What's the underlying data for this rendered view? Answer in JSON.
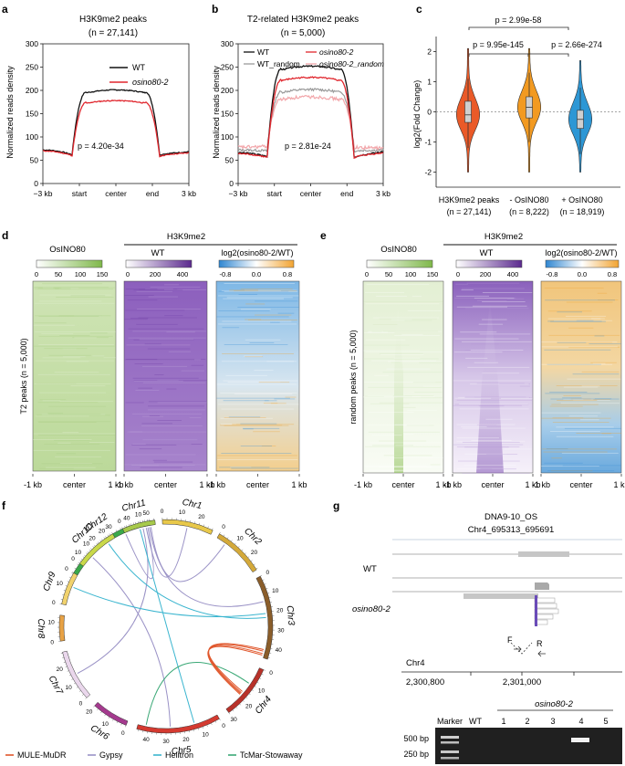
{
  "panels": {
    "a": {
      "letter": "a",
      "title": "H3K9me2 peaks",
      "n_label": "(n = 27,141)",
      "ylabel": "Normalized reads density",
      "yticks": [
        "0",
        "50",
        "100",
        "150",
        "200",
        "250",
        "300"
      ],
      "xticks": [
        "−3 kb",
        "start",
        "center",
        "end",
        "3 kb"
      ],
      "legend": [
        "WT",
        "osino80-2"
      ],
      "pvalue": "p = 4.20e-34"
    },
    "b": {
      "letter": "b",
      "title": "T2-related H3K9me2 peaks",
      "n_label": "(n = 5,000)",
      "ylabel": "Normalized reads density",
      "yticks": [
        "0",
        "50",
        "100",
        "150",
        "200",
        "250",
        "300"
      ],
      "xticks": [
        "−3 kb",
        "start",
        "center",
        "end",
        "3 kb"
      ],
      "legend": [
        "WT",
        "osino80-2",
        "WT_random",
        "osino80-2_random"
      ],
      "pvalue": "p = 2.81e-24"
    },
    "c": {
      "letter": "c",
      "ylabel": "log2(Fold Change)",
      "yticks": [
        "2",
        "1",
        "0",
        "-1",
        "-2"
      ],
      "groups": [
        "H3K9me2 peaks",
        "- OsINO80",
        "+ OsINO80"
      ],
      "group_n": [
        "(n = 27,141)",
        "(n = 8,222)",
        "(n = 18,919)"
      ],
      "pvalues": [
        "p = 2.99e-58",
        "p = 9.95e-145",
        "p = 2.66e-274"
      ]
    },
    "d": {
      "letter": "d",
      "h3k9_header": "H3K9me2",
      "col_titles": [
        "OsINO80",
        "WT",
        "log2(osino80-2/WT)"
      ],
      "scale_osino80": [
        "0",
        "50",
        "100",
        "150"
      ],
      "scale_wt": [
        "0",
        "200",
        "400"
      ],
      "scale_log": [
        "-0.8",
        "0.0",
        "0.8"
      ],
      "row_label": "T2 peaks (n = 5,000)",
      "xticks": [
        "-1 kb",
        "center",
        "1 kb"
      ]
    },
    "e": {
      "letter": "e",
      "h3k9_header": "H3K9me2",
      "col_titles": [
        "OsINO80",
        "WT",
        "log2(osino80-2/WT)"
      ],
      "scale_osino80": [
        "0",
        "50",
        "100",
        "150"
      ],
      "scale_wt": [
        "0",
        "200",
        "400"
      ],
      "scale_log": [
        "-0.8",
        "0.0",
        "0.8"
      ],
      "row_label": "random peaks (n = 5,000)",
      "xticks": [
        "-1 kb",
        "center",
        "1 kb"
      ]
    },
    "f": {
      "letter": "f",
      "chromosomes": [
        "Chr1",
        "Chr2",
        "Chr3",
        "Chr4",
        "Chr5",
        "Chr6",
        "Chr7",
        "Chr8",
        "Chr9",
        "Chr10",
        "Chr11",
        "Chr12"
      ],
      "legend": [
        "MULE-MuDR",
        "Gypsy",
        "Helitron",
        "TcMar-Stowaway"
      ]
    },
    "g": {
      "letter": "g",
      "locus_name": "DNA9-10_OS",
      "locus_coord": "Chr4_695313_695691",
      "tracks": [
        "WT",
        "osino80-2"
      ],
      "primers": [
        "F",
        "R"
      ],
      "chrom": "Chr4",
      "coords": [
        "2,300,800",
        "2,301,000"
      ],
      "gel_group": "osino80-2",
      "gel_lanes": [
        "Marker",
        "WT",
        "1",
        "2",
        "3",
        "4",
        "5"
      ],
      "gel_sizes": [
        "500 bp",
        "250 bp"
      ]
    }
  },
  "colors": {
    "wt": "#111111",
    "mutant": "#e0262d",
    "wt_random": "#9a9a9a",
    "mutant_random": "#f2a6aa",
    "violin": [
      "#ea5a28",
      "#f29a21",
      "#2d97d5"
    ],
    "osino80_heat": "#8bbf55",
    "wt_heat": "#6e3aa0",
    "log_neg": "#3a8fd6",
    "log_pos": "#f2a431",
    "mule": "#e0572c",
    "gypsy": "#9a92c6",
    "helitron": "#3ab5cf",
    "tcmar": "#3aa876"
  },
  "chart_data": [
    {
      "type": "line",
      "panel": "a",
      "title": "H3K9me2 peaks",
      "ylabel": "Normalized reads density",
      "ylim": [
        0,
        300
      ],
      "x": [
        "−3 kb",
        "start",
        "center",
        "end",
        "3 kb"
      ],
      "series": [
        {
          "name": "WT",
          "values": [
            72,
            62,
            201,
            61,
            68
          ]
        },
        {
          "name": "osino80-2",
          "values": [
            70,
            60,
            178,
            58,
            66
          ]
        }
      ]
    },
    {
      "type": "line",
      "panel": "b",
      "title": "T2-related H3K9me2 peaks",
      "ylabel": "Normalized reads density",
      "ylim": [
        0,
        300
      ],
      "x": [
        "−3 kb",
        "start",
        "center",
        "end",
        "3 kb"
      ],
      "series": [
        {
          "name": "WT",
          "values": [
            66,
            58,
            252,
            56,
            68
          ]
        },
        {
          "name": "osino80-2",
          "values": [
            64,
            56,
            228,
            55,
            66
          ]
        },
        {
          "name": "WT_random",
          "values": [
            72,
            70,
            202,
            70,
            72
          ]
        },
        {
          "name": "osino80-2_random",
          "values": [
            78,
            80,
            186,
            78,
            76
          ]
        }
      ]
    },
    {
      "type": "violin",
      "panel": "c",
      "ylabel": "log2(Fold Change)",
      "ylim": [
        -2.5,
        2.5
      ],
      "categories": [
        "H3K9me2 peaks",
        "- OsINO80",
        "+ OsINO80"
      ],
      "medians": [
        -0.1,
        0.15,
        -0.25
      ],
      "q1": [
        -0.35,
        -0.2,
        -0.55
      ],
      "q3": [
        0.35,
        0.5,
        0.05
      ],
      "whisker_low": [
        -1.2,
        -1.0,
        -1.4
      ],
      "whisker_high": [
        1.1,
        1.3,
        0.8
      ]
    }
  ]
}
